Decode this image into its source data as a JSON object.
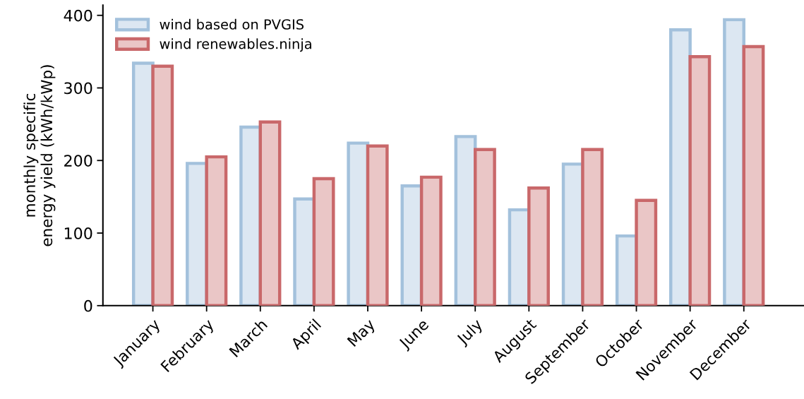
{
  "chart_data": {
    "type": "bar",
    "ylabel": "monthly specific\nenergy yield (kWh/kWp)",
    "categories": [
      "January",
      "February",
      "March",
      "April",
      "May",
      "June",
      "July",
      "August",
      "September",
      "October",
      "November",
      "December"
    ],
    "series": [
      {
        "name": "wind based on PVGIS",
        "color": "#a3c1dc",
        "values": [
          334,
          196,
          246,
          147,
          224,
          165,
          233,
          132,
          195,
          96,
          380,
          394
        ]
      },
      {
        "name": "wind renewables.ninja",
        "color": "#c9686a",
        "values": [
          330,
          205,
          253,
          175,
          220,
          177,
          215,
          162,
          215,
          145,
          343,
          357
        ]
      }
    ],
    "ylim": [
      0,
      414
    ],
    "yticks": [
      0,
      100,
      200,
      300,
      400
    ],
    "grid": false,
    "legend": "top left"
  }
}
